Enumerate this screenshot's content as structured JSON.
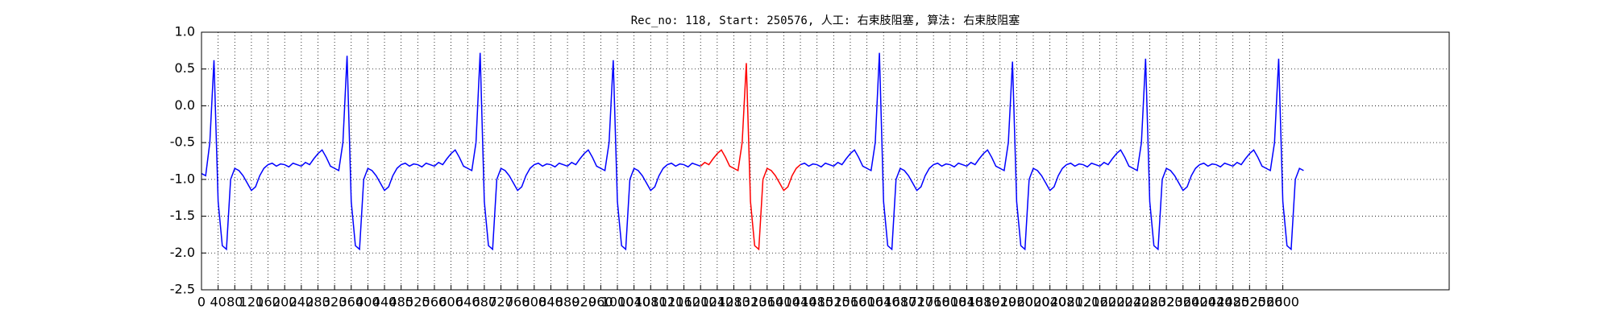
{
  "chart_data": {
    "type": "line",
    "title": "Rec_no: 118, Start: 250576, 人工: 右束肢阻塞, 算法: 右束肢阻塞",
    "xlim": [
      0,
      3000
    ],
    "xticks": [
      0,
      40,
      80,
      120,
      160,
      200,
      240,
      280,
      320,
      360,
      400,
      440,
      480,
      520,
      560,
      600,
      640,
      680,
      720,
      760,
      800,
      840,
      880,
      920,
      960,
      1000,
      1040,
      1080,
      1120,
      1160,
      1200,
      1240,
      1280,
      1320,
      1360,
      1400,
      1440,
      1480,
      1520,
      1560,
      1600,
      1640,
      1680,
      1720,
      1760,
      1800,
      1840,
      1880,
      1920,
      1960,
      2000,
      2040,
      2080,
      2120,
      2160,
      2200,
      2240,
      2280,
      2320,
      2360,
      2400,
      2440,
      2480,
      2520,
      2560,
      2600
    ],
    "ylim": [
      -2.5,
      1.0
    ],
    "yticks": [
      -2.5,
      {
        "value": -2.0,
        "label": "-2.0"
      },
      -1.5,
      {
        "value": -1.0,
        "label": "-1.0"
      },
      -0.5,
      {
        "value": 0.0,
        "label": "0.0"
      },
      0.5,
      {
        "value": 1.0,
        "label": "1.0"
      }
    ],
    "grid": true,
    "x": [
      0,
      10,
      20,
      30,
      40,
      50,
      60,
      70,
      80,
      90,
      100,
      110,
      120,
      130,
      140,
      150,
      160,
      170,
      180,
      190,
      200,
      210,
      220,
      230,
      240,
      250,
      260,
      270,
      280,
      290,
      300,
      310,
      320,
      330,
      340,
      350,
      360,
      370,
      380,
      390,
      400,
      410,
      420,
      430,
      440,
      450,
      460,
      470,
      480,
      490,
      500,
      510,
      520,
      530,
      540,
      550,
      560,
      570,
      580,
      590,
      600,
      610,
      620,
      630,
      640,
      650,
      660,
      670,
      680,
      690,
      700,
      710,
      720,
      730,
      740,
      750,
      760,
      770,
      780,
      790,
      800,
      810,
      820,
      830,
      840,
      850,
      860,
      870,
      880,
      890,
      900,
      910,
      920,
      930,
      940,
      950,
      960,
      970,
      980,
      990,
      1000,
      1010,
      1020,
      1030,
      1040,
      1050,
      1060,
      1070,
      1080,
      1090,
      1100,
      1110,
      1120,
      1130,
      1140,
      1150,
      1160,
      1170,
      1180,
      1190,
      1200,
      1210,
      1220,
      1230,
      1240,
      1250,
      1260,
      1270,
      1280,
      1290,
      1300,
      1310,
      1320,
      1330,
      1340,
      1350,
      1360,
      1370,
      1380,
      1390,
      1400,
      1410,
      1420,
      1430,
      1440,
      1450,
      1460,
      1470,
      1480,
      1490,
      1500,
      1510,
      1520,
      1530,
      1540,
      1550,
      1560,
      1570,
      1580,
      1590,
      1600,
      1610,
      1620,
      1630,
      1640,
      1650,
      1660,
      1670,
      1680,
      1690,
      1700,
      1710,
      1720,
      1730,
      1740,
      1750,
      1760,
      1770,
      1780,
      1790,
      1800,
      1810,
      1820,
      1830,
      1840,
      1850,
      1860,
      1870,
      1880,
      1890,
      1900,
      1910,
      1920,
      1930,
      1940,
      1950,
      1960,
      1970,
      1980,
      1990,
      2000,
      2010,
      2020,
      2030,
      2040,
      2050,
      2060,
      2070,
      2080,
      2090,
      2100,
      2110,
      2120,
      2130,
      2140,
      2150,
      2160,
      2170,
      2180,
      2190,
      2200,
      2210,
      2220,
      2230,
      2240,
      2250,
      2260,
      2270,
      2280,
      2290,
      2300,
      2310,
      2320,
      2330,
      2340,
      2350,
      2360,
      2370,
      2380,
      2390,
      2400,
      2410,
      2420,
      2430,
      2440,
      2450,
      2460,
      2470,
      2480,
      2490,
      2500,
      2510,
      2520,
      2530,
      2540,
      2550,
      2560,
      2570,
      2580,
      2590,
      2600,
      2610,
      2620,
      2630,
      2640,
      2650
    ],
    "series": [
      {
        "color": "#0000ff",
        "values": [
          -0.92,
          -0.95,
          -0.5,
          0.62,
          -1.3,
          -1.9,
          -1.95,
          -1.0,
          -0.85,
          -0.88,
          -0.95,
          -1.05,
          -1.15,
          -1.1,
          -0.95,
          -0.85,
          -0.8,
          -0.78,
          -0.82,
          -0.79,
          -0.8,
          -0.83,
          -0.78,
          -0.8,
          -0.82,
          -0.77,
          -0.8,
          -0.72,
          -0.65,
          -0.6,
          -0.7,
          -0.82,
          -0.85,
          -0.88,
          -0.5,
          0.68,
          -1.3,
          -1.9,
          -1.95,
          -1.0,
          -0.85,
          -0.88,
          -0.95,
          -1.05,
          -1.15,
          -1.1,
          -0.95,
          -0.85,
          -0.8,
          -0.78,
          -0.82,
          -0.79,
          -0.8,
          -0.83,
          -0.78,
          -0.8,
          -0.82,
          -0.77,
          -0.8,
          -0.72,
          -0.65,
          -0.6,
          -0.7,
          -0.82,
          -0.85,
          -0.88,
          -0.5,
          0.72,
          -1.3,
          -1.9,
          -1.95,
          -1.0,
          -0.85,
          -0.88,
          -0.95,
          -1.05,
          -1.15,
          -1.1,
          -0.95,
          -0.85,
          -0.8,
          -0.78,
          -0.82,
          -0.79,
          -0.8,
          -0.83,
          -0.78,
          -0.8,
          -0.82,
          -0.77,
          -0.8,
          -0.72,
          -0.65,
          -0.6,
          -0.7,
          -0.82,
          -0.85,
          -0.88,
          -0.5,
          0.62,
          -1.3,
          -1.9,
          -1.95,
          -1.0,
          -0.85,
          -0.88,
          -0.95,
          -1.05,
          -1.15,
          -1.1,
          -0.95,
          -0.85,
          -0.8,
          -0.78,
          -0.82,
          -0.79,
          -0.8,
          -0.83,
          -0.78,
          -0.8,
          -0.82,
          null,
          null,
          null,
          null,
          null,
          null,
          null,
          null,
          null,
          null,
          null,
          null,
          null,
          null,
          null,
          null,
          null,
          null,
          null,
          null,
          null,
          null,
          null,
          -0.8,
          -0.78,
          -0.82,
          -0.79,
          -0.8,
          -0.83,
          -0.78,
          -0.8,
          -0.82,
          -0.77,
          -0.8,
          -0.72,
          -0.65,
          -0.6,
          -0.7,
          -0.82,
          -0.85,
          -0.88,
          -0.5,
          0.72,
          -1.3,
          -1.9,
          -1.95,
          -1.0,
          -0.85,
          -0.88,
          -0.95,
          -1.05,
          -1.15,
          -1.1,
          -0.95,
          -0.85,
          -0.8,
          -0.78,
          -0.82,
          -0.79,
          -0.8,
          -0.83,
          -0.78,
          -0.8,
          -0.82,
          -0.77,
          -0.8,
          -0.72,
          -0.65,
          -0.6,
          -0.7,
          -0.82,
          -0.85,
          -0.88,
          -0.5,
          0.6,
          -1.3,
          -1.9,
          -1.95,
          -1.0,
          -0.85,
          -0.88,
          -0.95,
          -1.05,
          -1.15,
          -1.1,
          -0.95,
          -0.85,
          -0.8,
          -0.78,
          -0.82,
          -0.79,
          -0.8,
          -0.83,
          -0.78,
          -0.8,
          -0.82,
          -0.77,
          -0.8,
          -0.72,
          -0.65,
          -0.6,
          -0.7,
          -0.82,
          -0.85,
          -0.88,
          -0.5,
          0.64,
          -1.3,
          -1.9,
          -1.95,
          -1.0,
          -0.85,
          -0.88,
          -0.95,
          -1.05,
          -1.15,
          -1.1,
          -0.95,
          -0.85,
          -0.8,
          -0.78,
          -0.82,
          -0.79,
          -0.8,
          -0.83,
          -0.78,
          -0.8,
          -0.82,
          -0.77,
          -0.8,
          -0.72,
          -0.65,
          -0.6,
          -0.7,
          -0.82,
          -0.85,
          -0.88,
          -0.5,
          0.64,
          -1.3,
          -1.9,
          -1.95,
          -1.0,
          -0.85,
          -0.88
        ]
      },
      {
        "color": "#ff0000",
        "x": [
          1200,
          1210,
          1220,
          1230,
          1240,
          1250,
          1260,
          1270,
          1280,
          1290,
          1300,
          1310,
          1320,
          1330,
          1340,
          1350,
          1360,
          1370,
          1380,
          1390,
          1400,
          1410,
          1420,
          1430,
          1440
        ],
        "values": [
          -0.82,
          -0.77,
          -0.8,
          -0.72,
          -0.65,
          -0.6,
          -0.7,
          -0.82,
          -0.85,
          -0.88,
          -0.5,
          0.58,
          -1.3,
          -1.9,
          -1.95,
          -1.0,
          -0.85,
          -0.88,
          -0.95,
          -1.05,
          -1.15,
          -1.1,
          -0.95,
          -0.85,
          -0.8
        ]
      }
    ]
  }
}
